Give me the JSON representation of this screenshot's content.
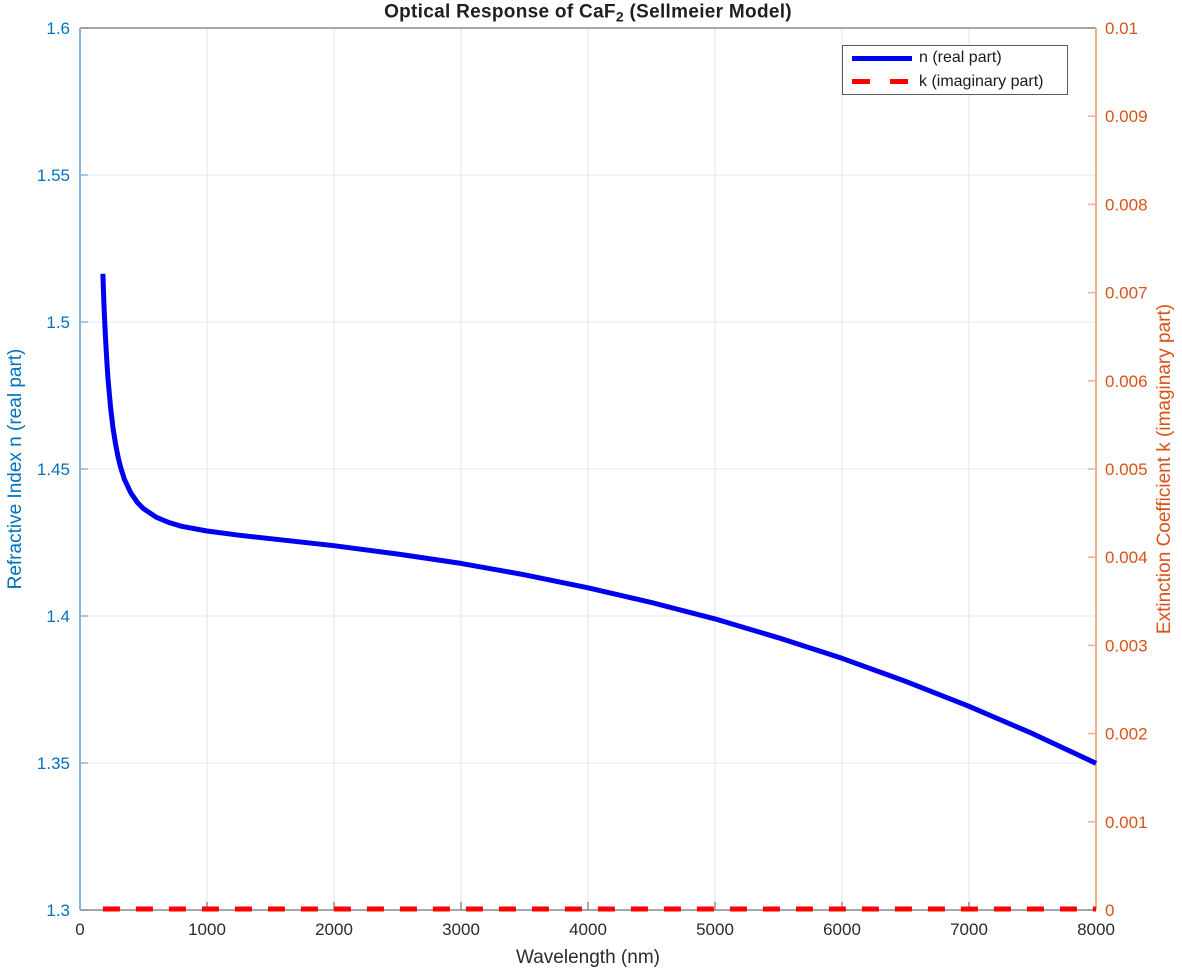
{
  "title": {
    "prefix": "Optical Response of CaF",
    "sub": "2",
    "suffix": " (Sellmeier Model)"
  },
  "axes": {
    "x": {
      "label": "Wavelength (nm)",
      "min": 0,
      "max": 8000,
      "tick_values": [
        0,
        1000,
        2000,
        3000,
        4000,
        5000,
        6000,
        7000,
        8000
      ],
      "tick_labels": [
        "0",
        "1000",
        "2000",
        "3000",
        "4000",
        "5000",
        "6000",
        "7000",
        "8000"
      ],
      "tick_color": "#2b2b2b",
      "spine_color": "#8c8c8c"
    },
    "y_left": {
      "label": "Refractive Index n (real part)",
      "min": 1.3,
      "max": 1.6,
      "tick_values": [
        1.3,
        1.35,
        1.4,
        1.45,
        1.5,
        1.55,
        1.6
      ],
      "tick_labels": [
        "1.3",
        "1.35",
        "1.4",
        "1.45",
        "1.5",
        "1.55",
        "1.6"
      ],
      "tick_color": "#0072BD",
      "spine_color": "#85b5dd"
    },
    "y_right": {
      "label": "Extinction Coefficient k (imaginary part)",
      "min": 0,
      "max": 0.01,
      "tick_values": [
        0,
        0.001,
        0.002,
        0.003,
        0.004,
        0.005,
        0.006,
        0.007,
        0.008,
        0.009,
        0.01
      ],
      "tick_labels": [
        "0",
        "0.001",
        "0.002",
        "0.003",
        "0.004",
        "0.005",
        "0.006",
        "0.007",
        "0.008",
        "0.009",
        "0.01"
      ],
      "tick_color": "#D95319",
      "spine_color": "#f0b28c"
    },
    "grid_color_horizontal": "#dfe8f2",
    "grid_color_vertical": "#e3e3e3"
  },
  "legend": {
    "position": "top-right",
    "items": [
      {
        "label": "n (real part)",
        "color": "#0000F0",
        "style": "solid"
      },
      {
        "label": "k (imaginary part)",
        "color": "#FF0000",
        "style": "dashed"
      }
    ]
  },
  "chart_data": {
    "type": "line",
    "title": "Optical Response of CaF2 (Sellmeier Model)",
    "xlabel": "Wavelength (nm)",
    "ylabel_left": "Refractive Index n (real part)",
    "ylabel_right": "Extinction Coefficient k (imaginary part)",
    "xlim": [
      0,
      8000
    ],
    "ylim_left": [
      1.3,
      1.6
    ],
    "ylim_right": [
      0,
      0.01
    ],
    "grid": true,
    "legend_position": "top-right",
    "series": [
      {
        "name": "n (real part)",
        "axis": "left",
        "color": "#0000F0",
        "style": "solid",
        "x": [
          180,
          185,
          190,
          200,
          210,
          220,
          240,
          260,
          280,
          300,
          320,
          350,
          400,
          450,
          500,
          600,
          700,
          800,
          1000,
          1250,
          1500,
          2000,
          2500,
          3000,
          3500,
          4000,
          4500,
          5000,
          5500,
          6000,
          6500,
          7000,
          7500,
          8000
        ],
        "y": [
          1.5164,
          1.5101,
          1.5046,
          1.4952,
          1.4875,
          1.4811,
          1.4712,
          1.4639,
          1.4584,
          1.454,
          1.4506,
          1.4465,
          1.4419,
          1.4387,
          1.4365,
          1.4336,
          1.4318,
          1.4305,
          1.4289,
          1.4275,
          1.4263,
          1.4239,
          1.4211,
          1.4179,
          1.414,
          1.4096,
          1.4046,
          1.399,
          1.3926,
          1.3856,
          1.3778,
          1.3693,
          1.36,
          1.3499
        ]
      },
      {
        "name": "k (imaginary part)",
        "axis": "right",
        "color": "#FF0000",
        "style": "dashed",
        "x": [
          180,
          8000
        ],
        "y": [
          0,
          0
        ]
      }
    ]
  }
}
